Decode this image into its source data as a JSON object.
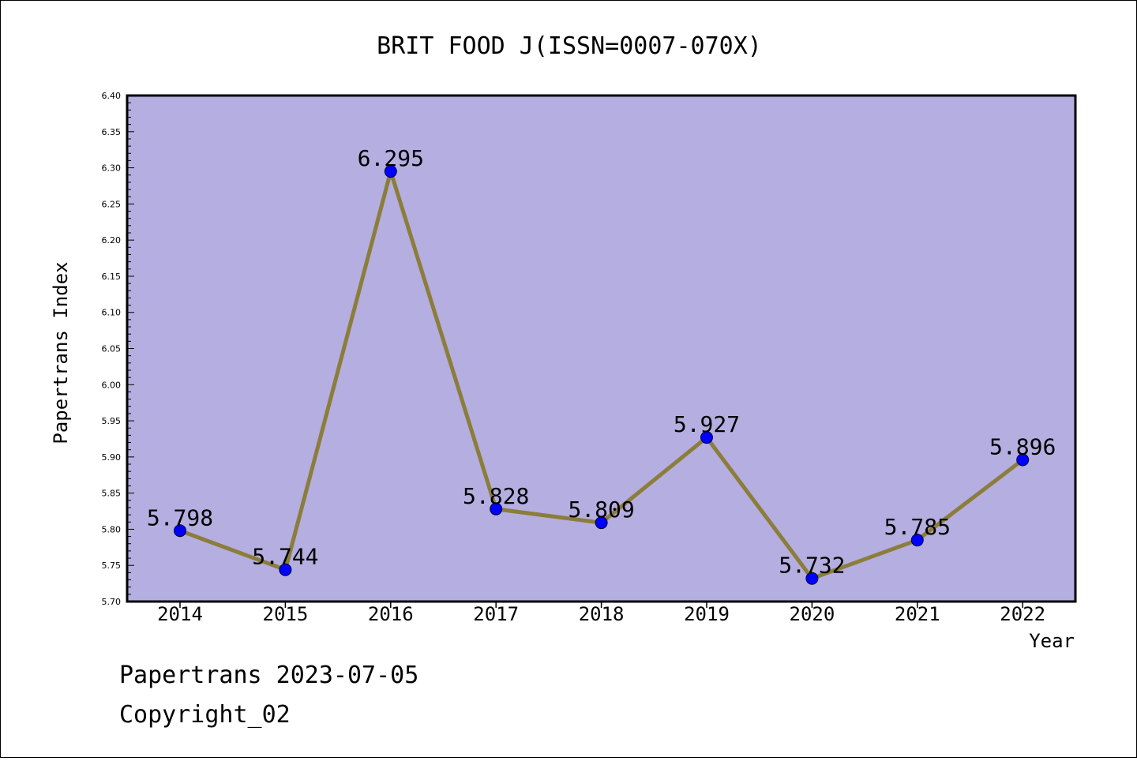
{
  "chart_data": {
    "type": "line",
    "title": "BRIT FOOD J(ISSN=0007-070X)",
    "xlabel": "Year",
    "ylabel": "Papertrans Index",
    "categories": [
      "2014",
      "2015",
      "2016",
      "2017",
      "2018",
      "2019",
      "2020",
      "2021",
      "2022"
    ],
    "values": [
      5.798,
      5.744,
      6.295,
      5.828,
      5.809,
      5.927,
      5.732,
      5.785,
      5.896
    ],
    "value_labels": [
      "5.798",
      "5.744",
      "6.295",
      "5.828",
      "5.809",
      "5.927",
      "5.732",
      "5.785",
      "5.896"
    ],
    "ylim": [
      5.7,
      6.4
    ],
    "yticks": [
      "5.70",
      "5.75",
      "5.80",
      "5.85",
      "5.90",
      "5.95",
      "6.00",
      "6.05",
      "6.10",
      "6.15",
      "6.20",
      "6.25",
      "6.30",
      "6.35",
      "6.40"
    ],
    "grid": false,
    "colors": {
      "plot_background": "#b5aee0",
      "line": "#8b7d3a",
      "marker": "#0000ff"
    }
  },
  "footer": {
    "line1": "Papertrans 2023-07-05",
    "line2": "Copyright_02"
  }
}
